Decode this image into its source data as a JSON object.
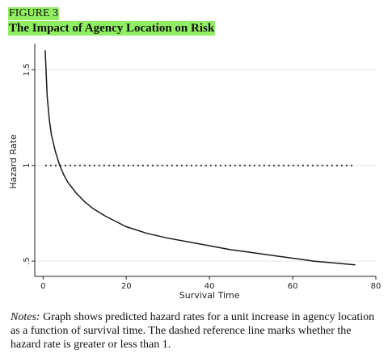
{
  "figure": {
    "label": "FIGURE 3",
    "title": "The Impact of Agency Location on Risk"
  },
  "notes": {
    "lead": "Notes:",
    "text": "Graph shows predicted hazard rates for a unit increase in agency location as a function of survival time. The dashed reference line marks whether the hazard rate is greater or less than 1."
  },
  "chart_data": {
    "type": "line",
    "xlabel": "Survival Time",
    "ylabel": "Hazard Rate",
    "xlim": [
      -2,
      80
    ],
    "ylim": [
      0.42,
      1.62
    ],
    "xticks": [
      0,
      20,
      40,
      60,
      80
    ],
    "xtick_labels": [
      "0",
      "20",
      "40",
      "60",
      "80"
    ],
    "yticks": [
      0.5,
      1,
      1.5
    ],
    "ytick_labels": [
      ".5",
      "1",
      "1.5"
    ],
    "grid": "horizontal",
    "series": [
      {
        "x": [
          0.5,
          1,
          1.5,
          2,
          3,
          4,
          5,
          6,
          8,
          10,
          12,
          15,
          20,
          25,
          30,
          35,
          40,
          45,
          50,
          55,
          60,
          65,
          70,
          75
        ],
        "y": [
          1.6,
          1.36,
          1.24,
          1.16,
          1.07,
          1.0,
          0.95,
          0.91,
          0.855,
          0.81,
          0.775,
          0.735,
          0.68,
          0.645,
          0.62,
          0.6,
          0.58,
          0.56,
          0.545,
          0.53,
          0.515,
          0.5,
          0.49,
          0.48
        ]
      }
    ],
    "reference_line": {
      "y": 1,
      "x_range": [
        0.5,
        75
      ],
      "style": "dashed"
    }
  }
}
